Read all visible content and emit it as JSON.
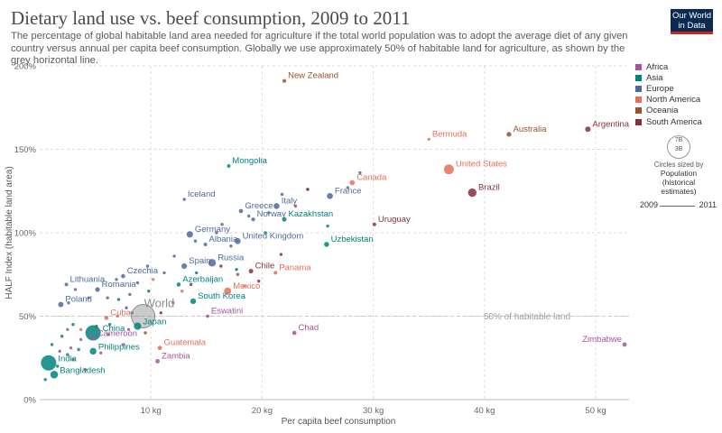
{
  "header": {
    "title": "Dietary land use vs. beef consumption, 2009 to 2011",
    "subtitle": "The percentage of global habitable land area needed for agriculture if the total world population was to adopt the average diet of any given country versus annual per capita beef consumption. Globally we use approximately 50% of habitable land for agriculture, as shown by the grey horizontal line.",
    "logo_line1": "Our World",
    "logo_line2": "in Data"
  },
  "legend": {
    "regions": [
      {
        "name": "Africa",
        "color": "#a2559c"
      },
      {
        "name": "Asia",
        "color": "#00847e"
      },
      {
        "name": "Europe",
        "color": "#4c6a9c"
      },
      {
        "name": "North America",
        "color": "#e56e5a"
      },
      {
        "name": "Oceania",
        "color": "#9a5129"
      },
      {
        "name": "South America",
        "color": "#883039"
      }
    ],
    "size_big": "7B",
    "size_small": "3B",
    "size_caption": "Circles sized by",
    "size_heading": "Population (historical estimates)",
    "time_start": "2009",
    "time_end": "2011"
  },
  "chart_data": {
    "type": "scatter",
    "xlabel": "Per capita beef consumption",
    "ylabel": "HALF Index (habitable land area)",
    "xlim": [
      0,
      53
    ],
    "ylim": [
      0,
      200
    ],
    "x_ticks": [
      {
        "value": 10,
        "label": "10 kg"
      },
      {
        "value": 20,
        "label": "20 kg"
      },
      {
        "value": 30,
        "label": "30 kg"
      },
      {
        "value": 40,
        "label": "40 kg"
      },
      {
        "value": 50,
        "label": "50 kg"
      }
    ],
    "y_ticks": [
      {
        "value": 0,
        "label": "0%"
      },
      {
        "value": 50,
        "label": "50%"
      },
      {
        "value": 100,
        "label": "100%"
      },
      {
        "value": 150,
        "label": "150%"
      },
      {
        "value": 200,
        "label": "200%"
      }
    ],
    "reference_line": {
      "y": 50,
      "label": "50% of habitable land"
    },
    "grid": true,
    "labeled_points": [
      {
        "label": "New Zealand",
        "region": "Oceania",
        "x": 22.0,
        "y": 191,
        "pop": 4.4
      },
      {
        "label": "Argentina",
        "region": "South America",
        "x": 49.3,
        "y": 162,
        "pop": 41
      },
      {
        "label": "Australia",
        "region": "Oceania",
        "x": 42.2,
        "y": 159,
        "pop": 22
      },
      {
        "label": "Bermuda",
        "region": "North America",
        "x": 35.0,
        "y": 156,
        "pop": 0.06
      },
      {
        "label": "United States",
        "region": "North America",
        "x": 36.8,
        "y": 138,
        "pop": 310
      },
      {
        "label": "Brazil",
        "region": "South America",
        "x": 38.9,
        "y": 124,
        "pop": 197
      },
      {
        "label": "Mongolia",
        "region": "Asia",
        "x": 17.0,
        "y": 140,
        "pop": 2.7
      },
      {
        "label": "Canada",
        "region": "North America",
        "x": 28.1,
        "y": 130,
        "pop": 34
      },
      {
        "label": "France",
        "region": "Europe",
        "x": 26.1,
        "y": 122,
        "pop": 63
      },
      {
        "label": "Iceland",
        "region": "Europe",
        "x": 13.0,
        "y": 120,
        "pop": 0.3
      },
      {
        "label": "Italy",
        "region": "Europe",
        "x": 21.3,
        "y": 116,
        "pop": 60
      },
      {
        "label": "Greece",
        "region": "Europe",
        "x": 18.1,
        "y": 113,
        "pop": 11
      },
      {
        "label": "Norway",
        "region": "Europe",
        "x": 19.2,
        "y": 108,
        "pop": 5
      },
      {
        "label": "Kazakhstan",
        "region": "Asia",
        "x": 22.0,
        "y": 108,
        "pop": 16
      },
      {
        "label": "Uruguay",
        "region": "South America",
        "x": 30.1,
        "y": 105,
        "pop": 3.4
      },
      {
        "label": "Germany",
        "region": "Europe",
        "x": 13.5,
        "y": 99,
        "pop": 81
      },
      {
        "label": "United Kingdom",
        "region": "Europe",
        "x": 17.8,
        "y": 95,
        "pop": 63
      },
      {
        "label": "Albania",
        "region": "Europe",
        "x": 14.9,
        "y": 93,
        "pop": 3
      },
      {
        "label": "Uzbekistan",
        "region": "Asia",
        "x": 25.8,
        "y": 93,
        "pop": 28
      },
      {
        "label": "Russia",
        "region": "Europe",
        "x": 15.5,
        "y": 82,
        "pop": 143
      },
      {
        "label": "Spain",
        "region": "Europe",
        "x": 13.0,
        "y": 80,
        "pop": 46
      },
      {
        "label": "Chile",
        "region": "South America",
        "x": 19.0,
        "y": 77,
        "pop": 17
      },
      {
        "label": "Panama",
        "region": "North America",
        "x": 21.2,
        "y": 76,
        "pop": 3.6
      },
      {
        "label": "Czechia",
        "region": "Europe",
        "x": 7.5,
        "y": 74,
        "pop": 10.5
      },
      {
        "label": "Lithuania",
        "region": "Europe",
        "x": 2.4,
        "y": 69,
        "pop": 3
      },
      {
        "label": "Azerbaijan",
        "region": "Asia",
        "x": 12.5,
        "y": 69,
        "pop": 9
      },
      {
        "label": "Romania",
        "region": "Europe",
        "x": 5.2,
        "y": 66,
        "pop": 20
      },
      {
        "label": "Mexico",
        "region": "North America",
        "x": 16.9,
        "y": 65,
        "pop": 117
      },
      {
        "label": "Poland",
        "region": "Europe",
        "x": 1.9,
        "y": 57,
        "pop": 38
      },
      {
        "label": "South Korea",
        "region": "Asia",
        "x": 13.8,
        "y": 59,
        "pop": 49
      },
      {
        "label": "Eswatini",
        "region": "Africa",
        "x": 15.1,
        "y": 50,
        "pop": 1.1
      },
      {
        "label": "World",
        "region": "",
        "x": 9.3,
        "y": 50,
        "pop": 6900
      },
      {
        "label": "Cuba",
        "region": "North America",
        "x": 6.0,
        "y": 49,
        "pop": 11
      },
      {
        "label": "China",
        "region": "Asia",
        "x": 4.8,
        "y": 40,
        "pop": 1340
      },
      {
        "label": "Japan",
        "region": "Asia",
        "x": 8.8,
        "y": 44,
        "pop": 127
      },
      {
        "label": "Cameroon",
        "region": "Africa",
        "x": 4.8,
        "y": 37,
        "pop": 21
      },
      {
        "label": "Chad",
        "region": "Africa",
        "x": 22.9,
        "y": 40,
        "pop": 12
      },
      {
        "label": "Zimbabwe",
        "region": "Africa",
        "x": 52.6,
        "y": 33,
        "pop": 13
      },
      {
        "label": "Guatemala",
        "region": "North America",
        "x": 10.8,
        "y": 31,
        "pop": 15
      },
      {
        "label": "Philippines",
        "region": "Asia",
        "x": 4.8,
        "y": 29,
        "pop": 94
      },
      {
        "label": "India",
        "region": "Asia",
        "x": 0.8,
        "y": 22,
        "pop": 1210
      },
      {
        "label": "Zambia",
        "region": "Africa",
        "x": 10.6,
        "y": 23,
        "pop": 14
      },
      {
        "label": "Bangladesh",
        "region": "Asia",
        "x": 1.3,
        "y": 15,
        "pop": 150
      }
    ],
    "unlabeled_points": [
      {
        "region": "Europe",
        "x": 15.9,
        "y": 100
      },
      {
        "region": "Europe",
        "x": 16.4,
        "y": 105
      },
      {
        "region": "Europe",
        "x": 18.8,
        "y": 110
      },
      {
        "region": "Europe",
        "x": 20.6,
        "y": 112
      },
      {
        "region": "Europe",
        "x": 21.8,
        "y": 123
      },
      {
        "region": "Europe",
        "x": 24.1,
        "y": 126
      },
      {
        "region": "Europe",
        "x": 27.7,
        "y": 127
      },
      {
        "region": "Europe",
        "x": 28.8,
        "y": 136
      },
      {
        "region": "Europe",
        "x": 17.2,
        "y": 92
      },
      {
        "region": "Europe",
        "x": 14.0,
        "y": 95
      },
      {
        "region": "Europe",
        "x": 12.1,
        "y": 86
      },
      {
        "region": "Europe",
        "x": 11.2,
        "y": 76
      },
      {
        "region": "Europe",
        "x": 9.7,
        "y": 80
      },
      {
        "region": "Europe",
        "x": 8.8,
        "y": 70
      },
      {
        "region": "Europe",
        "x": 6.9,
        "y": 72
      },
      {
        "region": "Europe",
        "x": 6.1,
        "y": 61
      },
      {
        "region": "Europe",
        "x": 4.4,
        "y": 61
      },
      {
        "region": "Europe",
        "x": 3.2,
        "y": 66
      },
      {
        "region": "Europe",
        "x": 2.6,
        "y": 58
      },
      {
        "region": "Europe",
        "x": 7.8,
        "y": 55
      },
      {
        "region": "Europe",
        "x": 8.1,
        "y": 63
      },
      {
        "region": "Asia",
        "x": 25.9,
        "y": 104
      },
      {
        "region": "Asia",
        "x": 20.3,
        "y": 100
      },
      {
        "region": "Asia",
        "x": 17.7,
        "y": 78
      },
      {
        "region": "Asia",
        "x": 14.1,
        "y": 76
      },
      {
        "region": "Asia",
        "x": 9.8,
        "y": 65
      },
      {
        "region": "Asia",
        "x": 7.1,
        "y": 60
      },
      {
        "region": "Asia",
        "x": 3.0,
        "y": 45
      },
      {
        "region": "Asia",
        "x": 2.0,
        "y": 38
      },
      {
        "region": "Asia",
        "x": 1.1,
        "y": 33
      },
      {
        "region": "Asia",
        "x": 3.5,
        "y": 30
      },
      {
        "region": "Asia",
        "x": 2.5,
        "y": 27
      },
      {
        "region": "Asia",
        "x": 6.3,
        "y": 45
      },
      {
        "region": "Asia",
        "x": 1.6,
        "y": 20
      },
      {
        "region": "Asia",
        "x": 0.5,
        "y": 12
      },
      {
        "region": "Africa",
        "x": 7.5,
        "y": 33
      },
      {
        "region": "Africa",
        "x": 5.5,
        "y": 28
      },
      {
        "region": "Africa",
        "x": 3.7,
        "y": 36
      },
      {
        "region": "Africa",
        "x": 2.8,
        "y": 31
      },
      {
        "region": "Africa",
        "x": 1.8,
        "y": 29
      },
      {
        "region": "Africa",
        "x": 3.0,
        "y": 24
      },
      {
        "region": "Africa",
        "x": 4.1,
        "y": 18
      },
      {
        "region": "Africa",
        "x": 6.2,
        "y": 39
      },
      {
        "region": "Africa",
        "x": 8.0,
        "y": 42
      },
      {
        "region": "Africa",
        "x": 12.0,
        "y": 58
      },
      {
        "region": "Africa",
        "x": 2.5,
        "y": 42
      },
      {
        "region": "North America",
        "x": 10.2,
        "y": 72
      },
      {
        "region": "North America",
        "x": 7.0,
        "y": 50
      },
      {
        "region": "North America",
        "x": 3.7,
        "y": 42
      },
      {
        "region": "North America",
        "x": 12.8,
        "y": 65
      },
      {
        "region": "North America",
        "x": 18.4,
        "y": 68
      },
      {
        "region": "Oceania",
        "x": 23.0,
        "y": 116
      },
      {
        "region": "Oceania",
        "x": 17.8,
        "y": 75
      },
      {
        "region": "Oceania",
        "x": 8.3,
        "y": 52
      },
      {
        "region": "Oceania",
        "x": 5.1,
        "y": 44
      },
      {
        "region": "Oceania",
        "x": 9.5,
        "y": 40
      },
      {
        "region": "South America",
        "x": 24.1,
        "y": 126
      },
      {
        "region": "South America",
        "x": 21.7,
        "y": 87
      },
      {
        "region": "South America",
        "x": 19.7,
        "y": 71
      },
      {
        "region": "South America",
        "x": 16.3,
        "y": 80
      },
      {
        "region": "South America",
        "x": 13.6,
        "y": 69
      },
      {
        "region": "South America",
        "x": 10.9,
        "y": 52
      }
    ]
  }
}
